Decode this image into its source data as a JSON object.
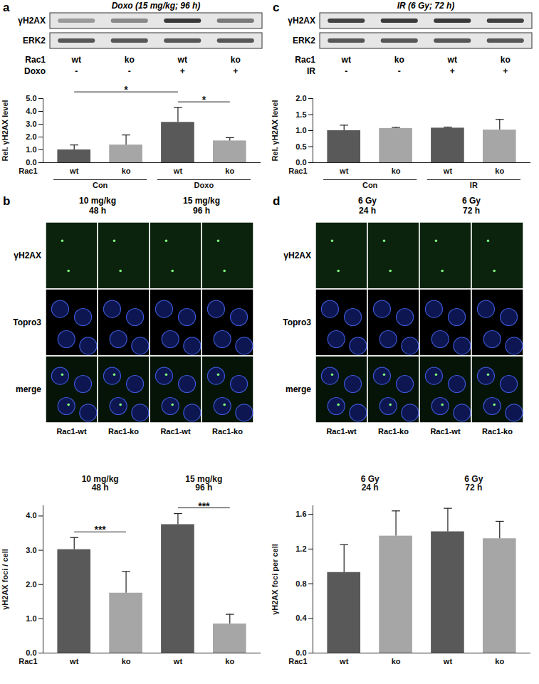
{
  "chart_data": [
    {
      "panel": "a",
      "type": "bar",
      "title": "Doxo (15 mg/kg; 96 h)",
      "blot": {
        "rows": [
          "γH2AX",
          "ERK2"
        ],
        "lanes": [
          {
            "name": "Rac1",
            "labels": [
              "wt",
              "ko",
              "wt",
              "ko"
            ]
          },
          {
            "name": "Doxo",
            "labels": [
              "-",
              "-",
              "+",
              "+"
            ]
          }
        ]
      },
      "y_label": "Rel. γH2AX level",
      "x_label": "Rac1",
      "categories": [
        "wt",
        "ko",
        "wt",
        "ko"
      ],
      "groups": [
        {
          "label": "Con",
          "from": 0,
          "to": 1
        },
        {
          "label": "Doxo",
          "from": 2,
          "to": 3
        }
      ],
      "values": [
        1.0,
        1.38,
        3.15,
        1.7
      ],
      "errors": [
        0.38,
        0.78,
        1.15,
        0.25
      ],
      "colors": [
        "#595959",
        "#a6a6a6",
        "#595959",
        "#a6a6a6"
      ],
      "ylim": [
        0,
        5
      ],
      "yticks": [
        {
          "value": 0,
          "label": "0.0"
        },
        {
          "value": 1,
          "label": "1.0"
        },
        {
          "value": 2,
          "label": "2.0"
        },
        {
          "value": 3,
          "label": "3.0"
        },
        {
          "value": 4,
          "label": "4.0"
        },
        {
          "value": 5,
          "label": "5.0"
        }
      ],
      "significance": [
        {
          "from": 0,
          "to": 2,
          "label": "*"
        },
        {
          "from": 2,
          "to": 3,
          "label": "*"
        }
      ]
    },
    {
      "panel": "b",
      "type": "bar",
      "images": {
        "rows": [
          "γH2AX",
          "Topro3",
          "merge"
        ],
        "columns": [
          {
            "title": "10 mg/kg\n48 h",
            "labels": [
              "Rac1-wt",
              "Rac1-ko"
            ]
          },
          {
            "title": "15 mg/kg\n96 h",
            "labels": [
              "Rac1-wt",
              "Rac1-ko"
            ]
          }
        ]
      },
      "y_label": "γH2AX foci / cell",
      "x_label": "Rac1",
      "categories": [
        "wt",
        "ko",
        "wt",
        "ko"
      ],
      "groups": [
        {
          "label": "10 mg/kg\n48 h",
          "from": 0,
          "to": 1
        },
        {
          "label": "15 mg/kg\n96 h",
          "from": 2,
          "to": 3
        }
      ],
      "values": [
        3.02,
        1.75,
        3.75,
        0.85
      ],
      "errors": [
        0.35,
        0.63,
        0.32,
        0.28
      ],
      "colors": [
        "#595959",
        "#a6a6a6",
        "#595959",
        "#a6a6a6"
      ],
      "ylim": [
        0,
        4.3
      ],
      "yticks": [
        {
          "value": 0,
          "label": "0.0"
        },
        {
          "value": 1,
          "label": "1.0"
        },
        {
          "value": 2,
          "label": "2.0"
        },
        {
          "value": 3,
          "label": "3.0"
        },
        {
          "value": 4,
          "label": "4.0"
        }
      ],
      "significance": [
        {
          "from": 0,
          "to": 1,
          "label": "***"
        },
        {
          "from": 2,
          "to": 3,
          "label": "***"
        }
      ]
    },
    {
      "panel": "c",
      "type": "bar",
      "title": "IR (6 Gy; 72 h)",
      "blot": {
        "rows": [
          "γH2AX",
          "ERK2"
        ],
        "lanes": [
          {
            "name": "Rac1",
            "labels": [
              "wt",
              "ko",
              "wt",
              "ko"
            ]
          },
          {
            "name": "IR",
            "labels": [
              "-",
              "-",
              "+",
              "+"
            ]
          }
        ]
      },
      "y_label": "Rel. γH2AX level",
      "x_label": "Rac1",
      "categories": [
        "wt",
        "ko",
        "wt",
        "ko"
      ],
      "groups": [
        {
          "label": "Con",
          "from": 0,
          "to": 1
        },
        {
          "label": "IR",
          "from": 2,
          "to": 3
        }
      ],
      "values": [
        1.0,
        1.07,
        1.08,
        1.02
      ],
      "errors": [
        0.17,
        0.03,
        0.03,
        0.33
      ],
      "colors": [
        "#595959",
        "#a6a6a6",
        "#595959",
        "#a6a6a6"
      ],
      "ylim": [
        0,
        2
      ],
      "yticks": [
        {
          "value": 0,
          "label": "0.0"
        },
        {
          "value": 0.5,
          "label": "0.5"
        },
        {
          "value": 1,
          "label": "1.0"
        },
        {
          "value": 1.5,
          "label": "1.5"
        },
        {
          "value": 2,
          "label": "2.0"
        }
      ],
      "significance": []
    },
    {
      "panel": "d",
      "type": "bar",
      "images": {
        "rows": [
          "γH2AX",
          "Topro3",
          "merge"
        ],
        "columns": [
          {
            "title": "6 Gy\n24 h",
            "labels": [
              "Rac1-wt",
              "Rac1-ko"
            ]
          },
          {
            "title": "6 Gy\n72 h",
            "labels": [
              "Rac1-wt",
              "Rac1-ko"
            ]
          }
        ]
      },
      "y_label": "γH2AX foci per cell",
      "x_label": "Rac1",
      "categories": [
        "wt",
        "ko",
        "wt",
        "ko"
      ],
      "groups": [
        {
          "label": "6 Gy\n24 h",
          "from": 0,
          "to": 1
        },
        {
          "label": "6 Gy\n72 h",
          "from": 2,
          "to": 3
        }
      ],
      "values": [
        0.93,
        1.35,
        1.4,
        1.32
      ],
      "errors": [
        0.32,
        0.29,
        0.27,
        0.2
      ],
      "colors": [
        "#595959",
        "#a6a6a6",
        "#595959",
        "#a6a6a6"
      ],
      "ylim": [
        0,
        1.7
      ],
      "yticks": [
        {
          "value": 0,
          "label": "0.0"
        },
        {
          "value": 0.4,
          "label": "0.4"
        },
        {
          "value": 0.8,
          "label": "0.8"
        },
        {
          "value": 1.2,
          "label": "1.2"
        },
        {
          "value": 1.6,
          "label": "1.6"
        }
      ],
      "significance": []
    }
  ]
}
